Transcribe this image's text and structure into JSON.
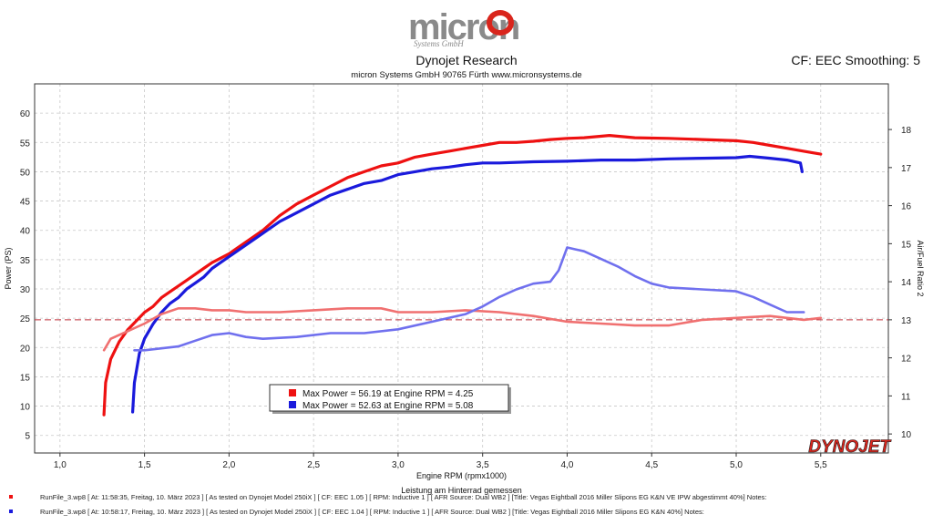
{
  "header": {
    "logo_text": "micron",
    "logo_sub": "Systems GmbH",
    "title": "Dynojet Research",
    "subtitle": "micron Systems GmbH  90765 Fürth www.micronsystems.de",
    "cf_label": "CF: EEC Smoothing: 5"
  },
  "colors": {
    "run1": "#ee1111",
    "run2": "#1a1adc",
    "run1_afr": "#f07070",
    "run2_afr": "#7070ee",
    "reference_line": "#c0303a"
  },
  "chart_data": {
    "type": "line",
    "title": "Dynojet Research",
    "xlabel": "Engine RPM (rpmx1000)",
    "xlabel2": "Leistung am Hinterrad gemessen",
    "ylabel": "Power (PS)",
    "ylabel_right": "Air/Fuel Ratio 2",
    "xlim": [
      0.85,
      5.9
    ],
    "ylim": [
      2,
      65
    ],
    "ylim_right": [
      9.5,
      19.2
    ],
    "x_ticks": [
      "1,0",
      "1,5",
      "2,0",
      "2,5",
      "3,0",
      "3,5",
      "4,0",
      "4,5",
      "5,0",
      "5,5"
    ],
    "x_tick_values": [
      1.0,
      1.5,
      2.0,
      2.5,
      3.0,
      3.5,
      4.0,
      4.5,
      5.0,
      5.5
    ],
    "y_ticks": [
      "5",
      "10",
      "15",
      "20",
      "25",
      "30",
      "35",
      "40",
      "45",
      "50",
      "55",
      "60"
    ],
    "y_tick_values": [
      5,
      10,
      15,
      20,
      25,
      30,
      35,
      40,
      45,
      50,
      55,
      60
    ],
    "y_ticks_right": [
      "10",
      "11",
      "12",
      "13",
      "14",
      "15",
      "16",
      "17",
      "18"
    ],
    "y_tick_values_right": [
      10,
      11,
      12,
      13,
      14,
      15,
      16,
      17,
      18
    ],
    "reference_afr": 13.0,
    "grid": true,
    "brand_mark": "DYNOJET",
    "series": [
      {
        "name": "Power run 1",
        "axis": "left",
        "x": [
          1.26,
          1.27,
          1.3,
          1.35,
          1.4,
          1.45,
          1.5,
          1.55,
          1.6,
          1.65,
          1.7,
          1.75,
          1.8,
          1.85,
          1.9,
          2.0,
          2.1,
          2.2,
          2.3,
          2.4,
          2.5,
          2.6,
          2.7,
          2.8,
          2.9,
          3.0,
          3.1,
          3.2,
          3.3,
          3.4,
          3.5,
          3.6,
          3.7,
          3.8,
          3.9,
          4.0,
          4.1,
          4.25,
          4.4,
          4.6,
          4.8,
          5.0,
          5.1,
          5.2,
          5.3,
          5.4,
          5.5
        ],
        "y": [
          8.5,
          14,
          18,
          21,
          23,
          24.5,
          26,
          27,
          28.5,
          29.5,
          30.5,
          31.5,
          32.5,
          33.5,
          34.5,
          36,
          38,
          40,
          42.5,
          44.5,
          46,
          47.5,
          49,
          50,
          51,
          51.5,
          52.5,
          53,
          53.5,
          54,
          54.5,
          55,
          55,
          55.2,
          55.5,
          55.7,
          55.8,
          56.19,
          55.8,
          55.7,
          55.5,
          55.3,
          55,
          54.5,
          54,
          53.5,
          53
        ]
      },
      {
        "name": "Power run 2",
        "axis": "left",
        "x": [
          1.43,
          1.44,
          1.47,
          1.5,
          1.55,
          1.6,
          1.65,
          1.7,
          1.75,
          1.8,
          1.85,
          1.9,
          2.0,
          2.1,
          2.2,
          2.3,
          2.4,
          2.5,
          2.6,
          2.7,
          2.8,
          2.9,
          3.0,
          3.1,
          3.2,
          3.3,
          3.4,
          3.5,
          3.6,
          3.8,
          4.0,
          4.2,
          4.4,
          4.6,
          4.8,
          5.0,
          5.08,
          5.2,
          5.3,
          5.38,
          5.39
        ],
        "y": [
          9,
          14,
          19,
          21.5,
          24,
          26,
          27.5,
          28.5,
          30,
          31,
          32,
          33.5,
          35.5,
          37.5,
          39.5,
          41.5,
          43,
          44.5,
          46,
          47,
          48,
          48.5,
          49.5,
          50,
          50.5,
          50.8,
          51.2,
          51.5,
          51.5,
          51.7,
          51.8,
          52,
          52,
          52.2,
          52.3,
          52.4,
          52.63,
          52.3,
          52,
          51.5,
          50
        ]
      },
      {
        "name": "AFR run 1",
        "axis": "right",
        "x": [
          1.26,
          1.3,
          1.4,
          1.5,
          1.6,
          1.7,
          1.8,
          1.9,
          2.0,
          2.1,
          2.2,
          2.3,
          2.5,
          2.7,
          2.9,
          3.0,
          3.2,
          3.4,
          3.6,
          3.8,
          4.0,
          4.2,
          4.4,
          4.6,
          4.8,
          5.0,
          5.2,
          5.4,
          5.5
        ],
        "y": [
          12.2,
          12.5,
          12.7,
          12.9,
          13.15,
          13.3,
          13.3,
          13.25,
          13.25,
          13.2,
          13.2,
          13.2,
          13.25,
          13.3,
          13.3,
          13.2,
          13.2,
          13.25,
          13.2,
          13.1,
          12.95,
          12.9,
          12.85,
          12.85,
          13.0,
          13.05,
          13.1,
          13.0,
          13.05
        ]
      },
      {
        "name": "AFR run 2",
        "axis": "right",
        "x": [
          1.44,
          1.5,
          1.6,
          1.7,
          1.8,
          1.9,
          2.0,
          2.1,
          2.2,
          2.4,
          2.6,
          2.8,
          3.0,
          3.2,
          3.4,
          3.5,
          3.6,
          3.7,
          3.8,
          3.9,
          3.95,
          4.0,
          4.05,
          4.1,
          4.2,
          4.3,
          4.4,
          4.5,
          4.6,
          4.8,
          5.0,
          5.1,
          5.2,
          5.3,
          5.4
        ],
        "y": [
          12.2,
          12.2,
          12.25,
          12.3,
          12.45,
          12.6,
          12.65,
          12.55,
          12.5,
          12.55,
          12.65,
          12.65,
          12.75,
          12.95,
          13.15,
          13.35,
          13.6,
          13.8,
          13.95,
          14.0,
          14.3,
          14.9,
          14.85,
          14.8,
          14.6,
          14.4,
          14.15,
          13.95,
          13.85,
          13.8,
          13.75,
          13.6,
          13.4,
          13.2,
          13.2
        ]
      }
    ],
    "legend": [
      {
        "text": "Max Power = 56.19 at Engine RPM = 4.25",
        "color": "#ee1111"
      },
      {
        "text": "Max Power = 52.63 at Engine RPM = 5.08",
        "color": "#1a1adc"
      }
    ],
    "legend_position": "center-lower-left"
  },
  "footer": {
    "rows": [
      {
        "color": "#ee1111",
        "text": "RunFile_3.wp8  [ At:  11:58:35, Freitag, 10. März 2023 ] [ As tested on Dynojet Model 250iX ] [ CF:  EEC 1.05 ] [ RPM:  Inductive 1 ] [ AFR Source:  Dual WB2 ] [Title:  Vegas Eightball 2016 Miller Slipons EG K&N   VE IPW abgestimmt 40%]   Notes:"
      },
      {
        "color": "#1a1adc",
        "text": "RunFile_3.wp8  [ At:  10:58:17, Freitag, 10. März 2023 ] [ As tested on Dynojet Model 250iX ] [ CF:  EEC 1.04 ] [ RPM:  Inductive 1 ] [ AFR Source:  Dual WB2 ] [Title:  Vegas Eightball 2016 Miller Slipons EG K&N 40%]   Notes:"
      }
    ]
  }
}
